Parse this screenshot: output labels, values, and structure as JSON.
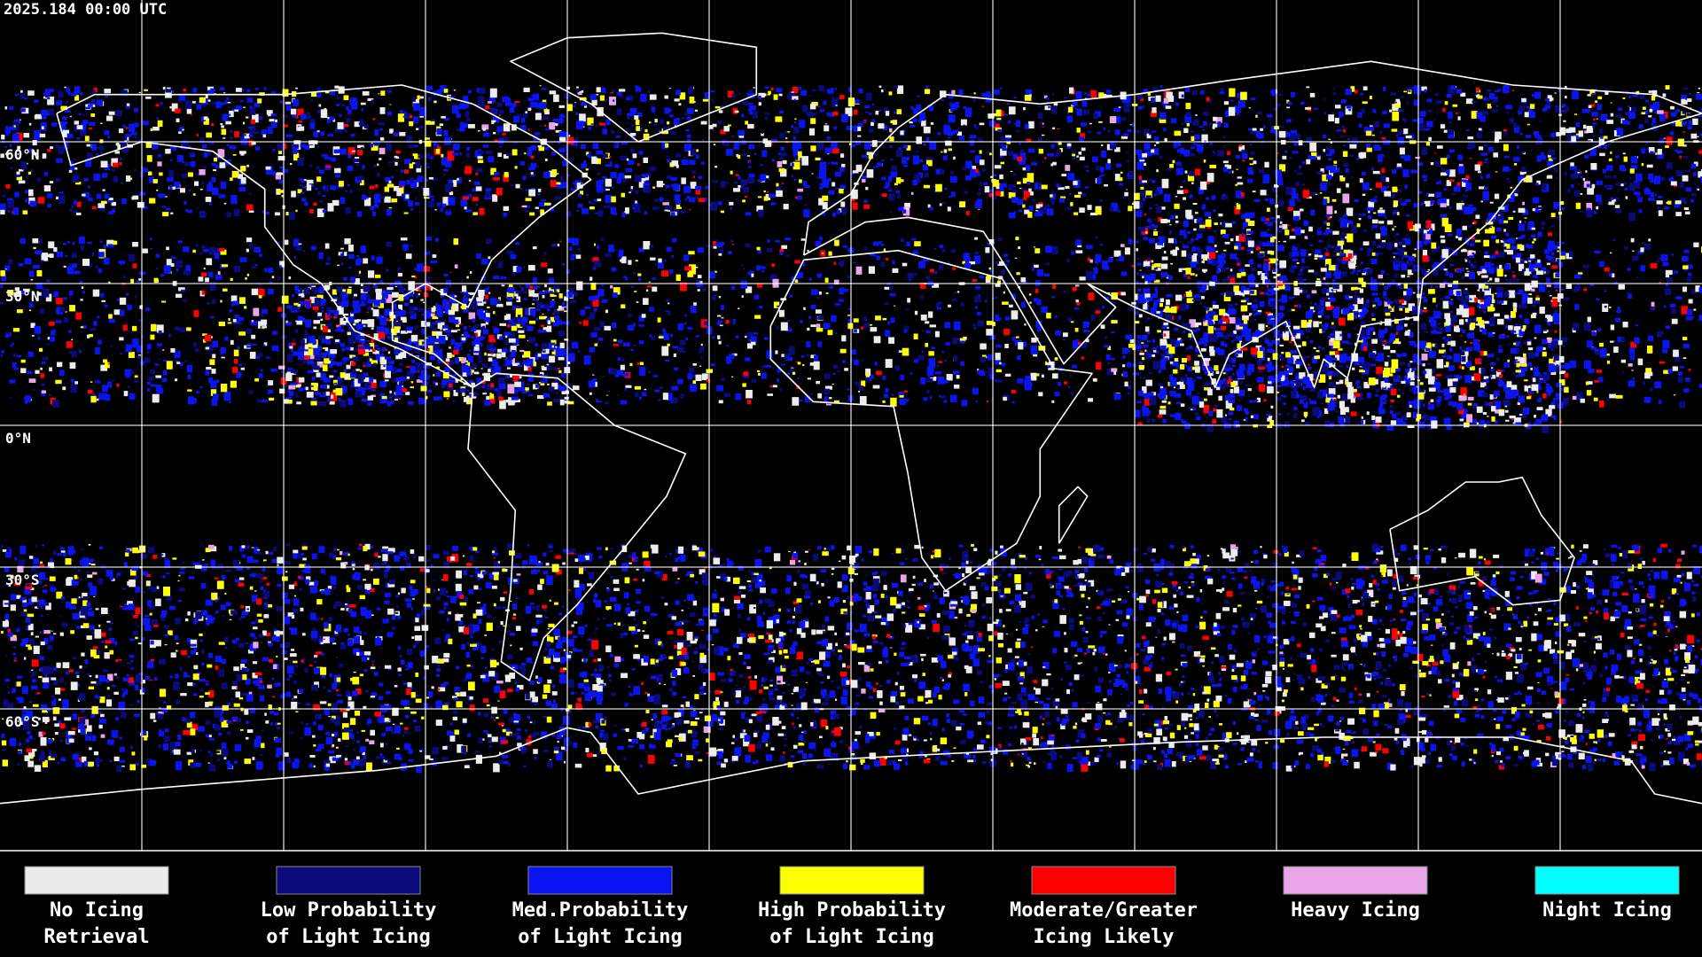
{
  "header": {
    "timestamp": "2025.184 00:00 UTC"
  },
  "map": {
    "lat_labels": [
      "60°N",
      "30°N",
      "0°N",
      "30°S",
      "60°S"
    ]
  },
  "legend": [
    {
      "label_lines": [
        "No Icing",
        "Retrieval"
      ],
      "color": "#ececec"
    },
    {
      "label_lines": [
        "Low Probability",
        "of Light Icing"
      ],
      "color": "#0a0a7a"
    },
    {
      "label_lines": [
        "Med.Probability",
        "of Light Icing"
      ],
      "color": "#0a14f0"
    },
    {
      "label_lines": [
        "High Probability",
        "of Light Icing"
      ],
      "color": "#ffff00"
    },
    {
      "label_lines": [
        "Moderate/Greater",
        "Icing Likely"
      ],
      "color": "#ff0000"
    },
    {
      "label_lines": [
        "Heavy Icing"
      ],
      "color": "#e8a6e8"
    },
    {
      "label_lines": [
        "Night Icing"
      ],
      "color": "#00ffff"
    }
  ]
}
